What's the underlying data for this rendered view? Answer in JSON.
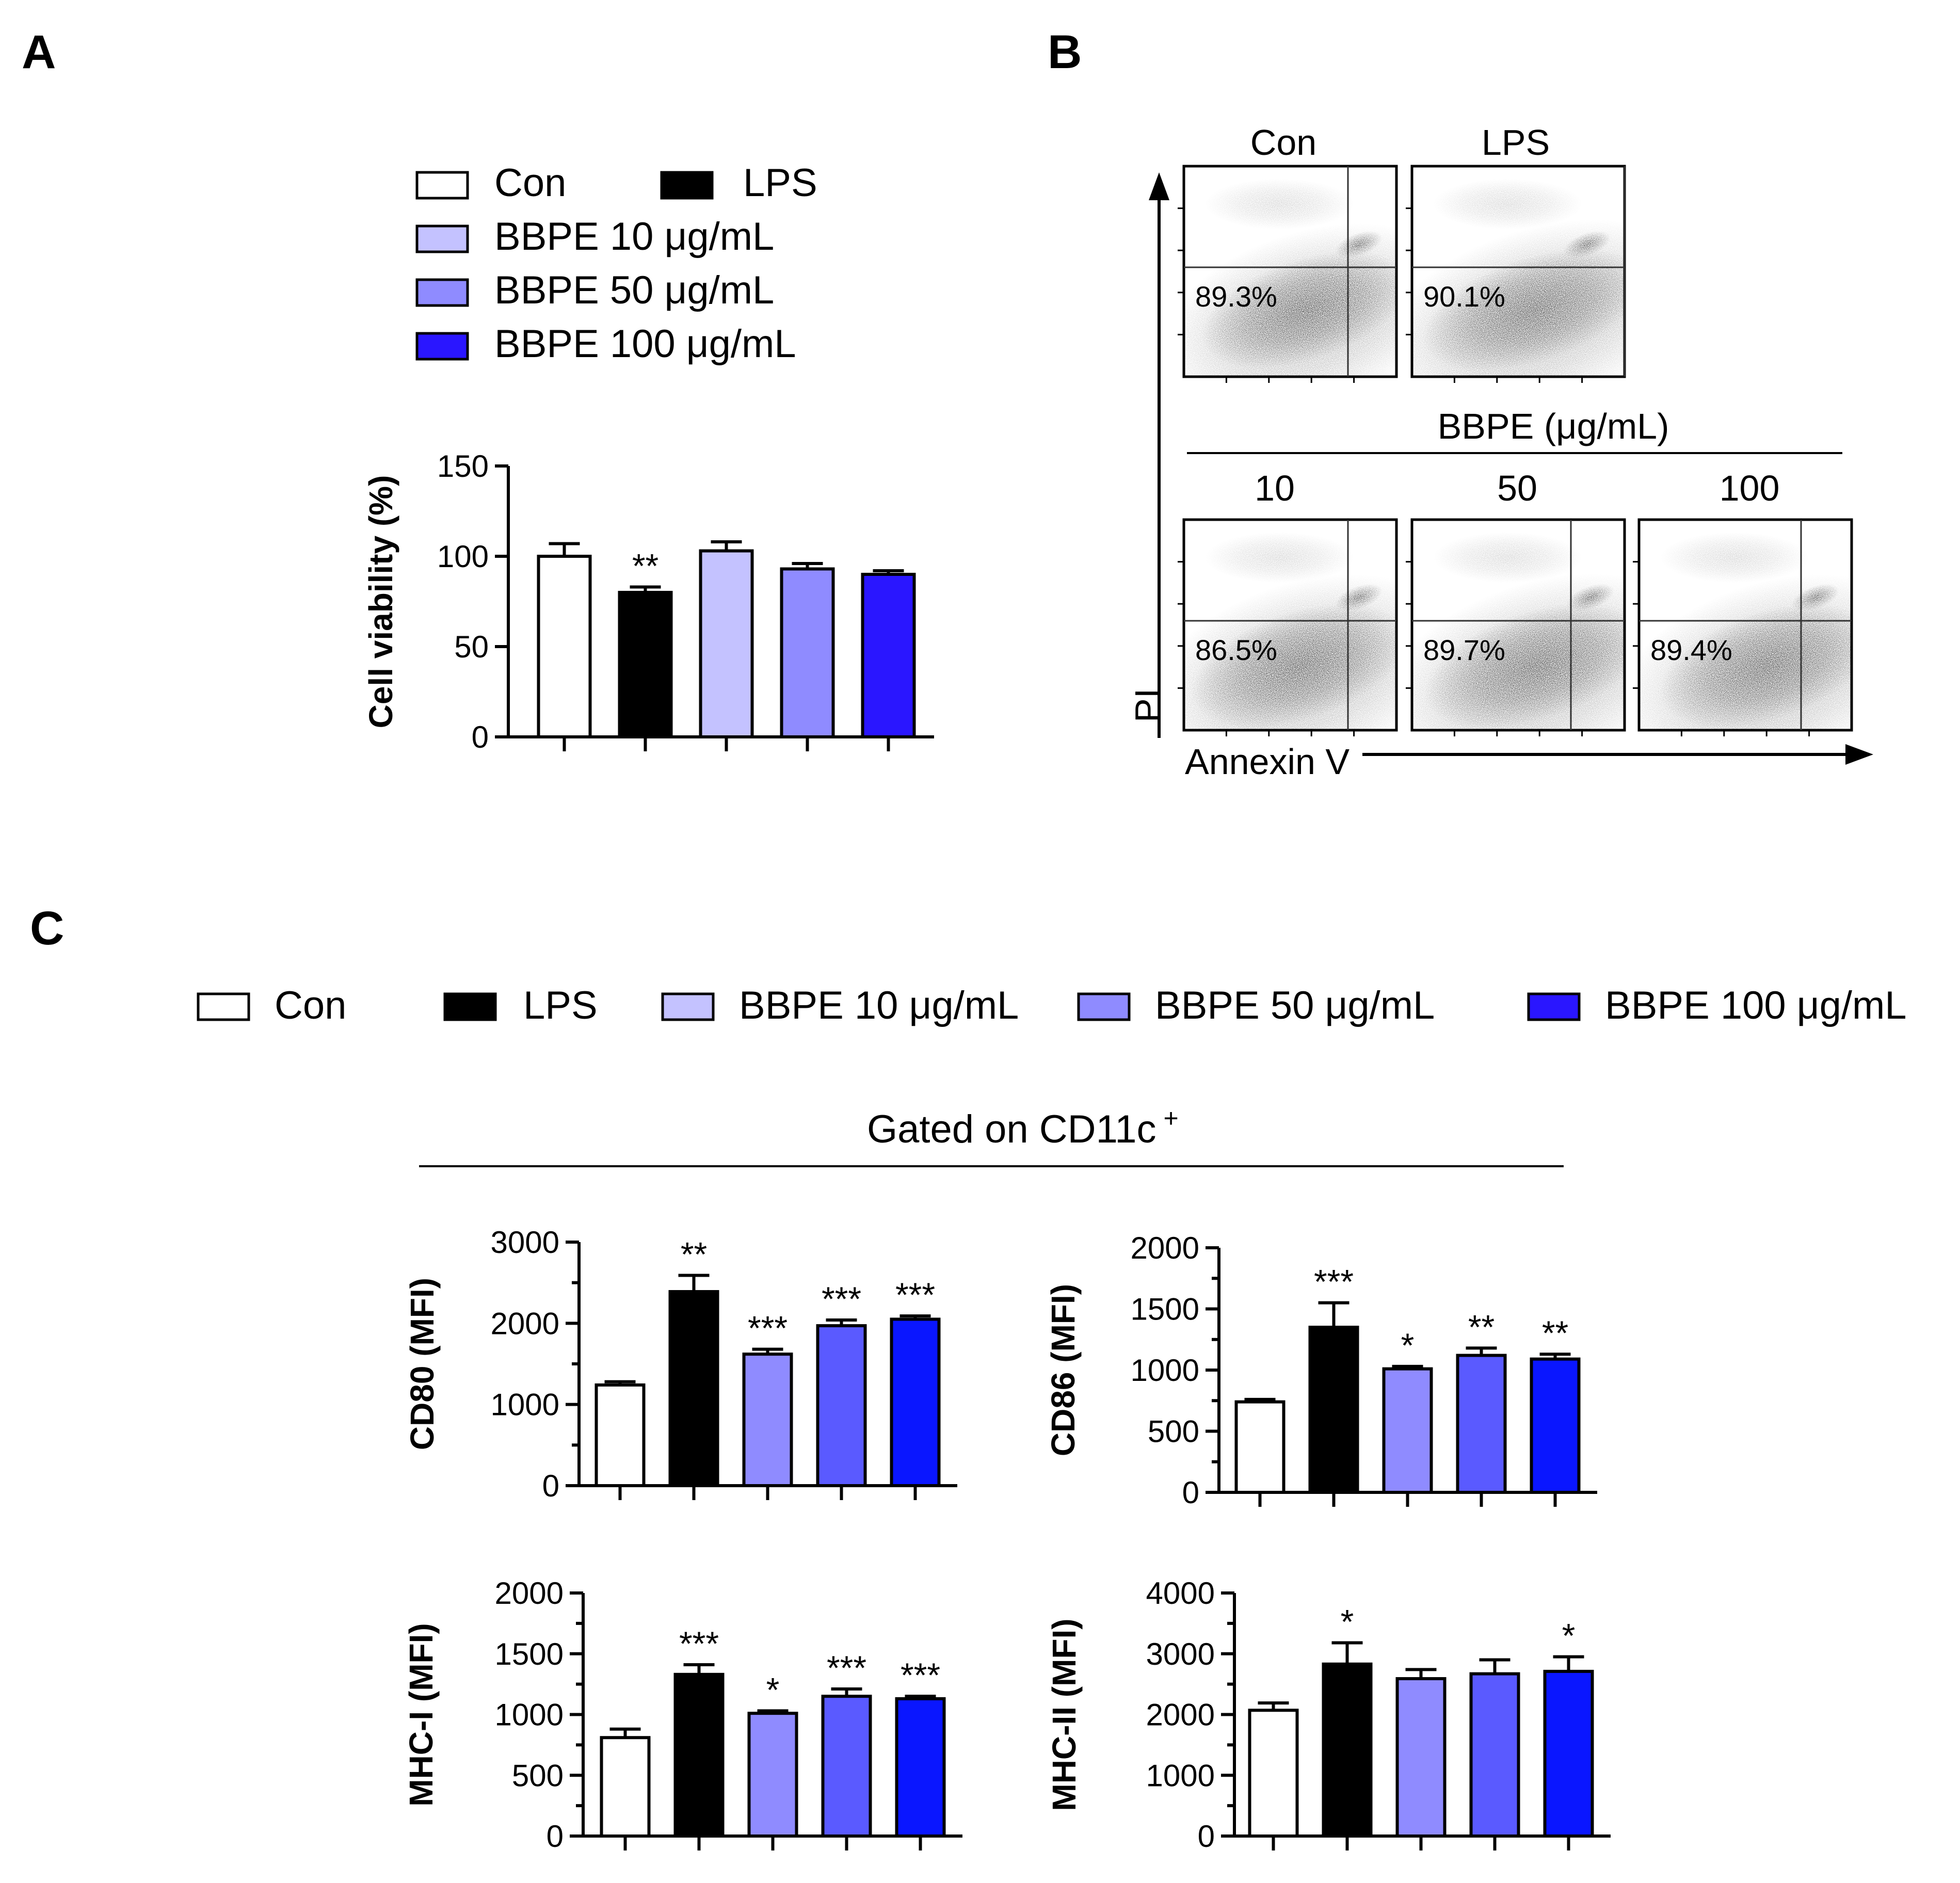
{
  "panels": {
    "a": "A",
    "b": "B",
    "c": "C"
  },
  "colors": {
    "con": "#ffffff",
    "lps": "#000000",
    "bbpe10": "#c4c2ff",
    "bbpe50": "#8f8bff",
    "bbpe100": "#2a16ff",
    "bbpe50_c": "#5a5aff",
    "bbpe100_c": "#0a16ff"
  },
  "legend_a": [
    {
      "label": "Con",
      "color": "#ffffff"
    },
    {
      "label": "LPS",
      "color": "#000000"
    },
    {
      "label": "BBPE 10 μg/mL",
      "color": "#c4c2ff"
    },
    {
      "label": "BBPE 50 μg/mL",
      "color": "#8f8bff"
    },
    {
      "label": "BBPE 100 μg/mL",
      "color": "#2a16ff"
    }
  ],
  "legend_c": [
    {
      "label": "Con",
      "color": "#ffffff"
    },
    {
      "label": "LPS",
      "color": "#000000"
    },
    {
      "label": "BBPE 10 μg/mL",
      "color": "#c4c2ff"
    },
    {
      "label": "BBPE 50 μg/mL",
      "color": "#8f8bff"
    },
    {
      "label": "BBPE 100 μg/mL",
      "color": "#2a16ff"
    }
  ],
  "flow": {
    "title_top": [
      "Con",
      "LPS"
    ],
    "bbpe_header": "BBPE (μg/mL)",
    "title_bottom": [
      "10",
      "50",
      "100"
    ],
    "percents": [
      "89.3%",
      "90.1%",
      "86.5%",
      "89.7%",
      "89.4%"
    ],
    "y_axis": "PI",
    "x_axis": "Annexin V"
  },
  "gated_label": "Gated on CD11c",
  "gated_sup": "+",
  "chart_data": [
    {
      "id": "viability",
      "type": "bar",
      "panel": "A",
      "title": "",
      "xlabel": "",
      "ylabel": "Cell viability (%)",
      "categories": [
        "Con",
        "LPS",
        "BBPE 10 μg/mL",
        "BBPE 50 μg/mL",
        "BBPE 100 μg/mL"
      ],
      "values": [
        100,
        80,
        103,
        93,
        90
      ],
      "errors": [
        7,
        3,
        5,
        3,
        2
      ],
      "significance": [
        "",
        "**",
        "",
        "",
        ""
      ],
      "ylim": [
        0,
        150
      ],
      "yticks": [
        0,
        50,
        100,
        150
      ],
      "colors": [
        "#ffffff",
        "#000000",
        "#c4c2ff",
        "#8f8bff",
        "#2a16ff"
      ]
    },
    {
      "id": "cd80",
      "type": "bar",
      "panel": "C",
      "title": "",
      "xlabel": "",
      "ylabel": "CD80 (MFI)",
      "categories": [
        "Con",
        "LPS",
        "BBPE 10 μg/mL",
        "BBPE 50 μg/mL",
        "BBPE 100 μg/mL"
      ],
      "values": [
        1240,
        2390,
        1620,
        1970,
        2050
      ],
      "errors": [
        40,
        200,
        60,
        70,
        40
      ],
      "significance": [
        "",
        "**",
        "***",
        "***",
        "***"
      ],
      "ylim": [
        0,
        3000
      ],
      "yticks": [
        0,
        1000,
        2000,
        3000
      ],
      "colors": [
        "#ffffff",
        "#000000",
        "#8f8bff",
        "#5a5aff",
        "#0a16ff"
      ]
    },
    {
      "id": "cd86",
      "type": "bar",
      "panel": "C",
      "title": "",
      "xlabel": "",
      "ylabel": "CD86 (MFI)",
      "categories": [
        "Con",
        "LPS",
        "BBPE 10 μg/mL",
        "BBPE 50 μg/mL",
        "BBPE 100 μg/mL"
      ],
      "values": [
        740,
        1350,
        1010,
        1120,
        1090
      ],
      "errors": [
        20,
        200,
        20,
        60,
        40
      ],
      "significance": [
        "",
        "***",
        "*",
        "**",
        "**"
      ],
      "ylim": [
        0,
        2000
      ],
      "yticks": [
        0,
        500,
        1000,
        1500,
        2000
      ],
      "colors": [
        "#ffffff",
        "#000000",
        "#8f8bff",
        "#5a5aff",
        "#0a16ff"
      ]
    },
    {
      "id": "mhc1",
      "type": "bar",
      "panel": "C",
      "title": "",
      "xlabel": "",
      "ylabel": "MHC-I (MFI)",
      "categories": [
        "Con",
        "LPS",
        "BBPE 10 μg/mL",
        "BBPE 50 μg/mL",
        "BBPE 100 μg/mL"
      ],
      "values": [
        810,
        1330,
        1010,
        1150,
        1130
      ],
      "errors": [
        70,
        80,
        20,
        60,
        20
      ],
      "significance": [
        "",
        "***",
        "*",
        "***",
        "***"
      ],
      "ylim": [
        0,
        2000
      ],
      "yticks": [
        0,
        500,
        1000,
        1500,
        2000
      ],
      "colors": [
        "#ffffff",
        "#000000",
        "#8f8bff",
        "#5a5aff",
        "#0a16ff"
      ]
    },
    {
      "id": "mhc2",
      "type": "bar",
      "panel": "C",
      "title": "",
      "xlabel": "",
      "ylabel": "MHC-II (MFI)",
      "categories": [
        "Con",
        "LPS",
        "BBPE 10 μg/mL",
        "BBPE 50 μg/mL",
        "BBPE 100 μg/mL"
      ],
      "values": [
        2070,
        2830,
        2590,
        2670,
        2710
      ],
      "errors": [
        120,
        350,
        150,
        230,
        240
      ],
      "significance": [
        "",
        "*",
        "",
        "",
        "*"
      ],
      "ylim": [
        0,
        4000
      ],
      "yticks": [
        0,
        1000,
        2000,
        3000,
        4000
      ],
      "colors": [
        "#ffffff",
        "#000000",
        "#8f8bff",
        "#5a5aff",
        "#0a16ff"
      ]
    }
  ]
}
